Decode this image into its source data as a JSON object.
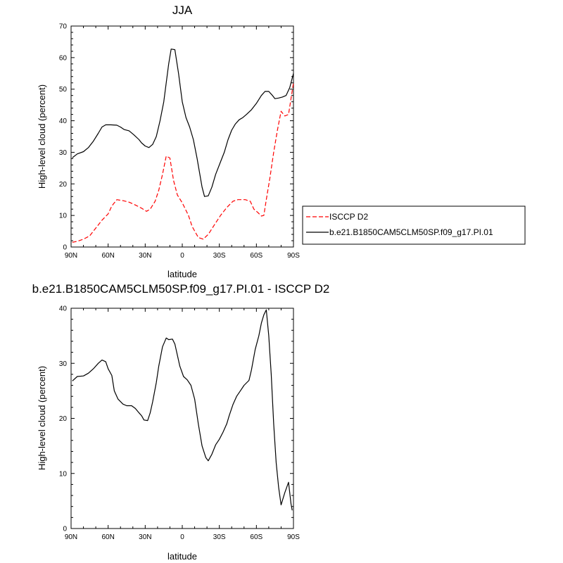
{
  "chart_data": [
    {
      "type": "line",
      "title": "JJA",
      "xlabel": "latitude",
      "ylabel": "High-level cloud (percent)",
      "xlim": [
        -90,
        90
      ],
      "ylim": [
        0,
        70
      ],
      "x_ticks": [
        {
          "v": -90,
          "label": "90N"
        },
        {
          "v": -60,
          "label": "60N"
        },
        {
          "v": -30,
          "label": "30N"
        },
        {
          "v": 0,
          "label": "0"
        },
        {
          "v": 30,
          "label": "30S"
        },
        {
          "v": 60,
          "label": "60S"
        },
        {
          "v": 90,
          "label": "90S"
        }
      ],
      "y_ticks": [
        0,
        10,
        20,
        30,
        40,
        50,
        60,
        70
      ],
      "legend_position": "right",
      "series": [
        {
          "name": "ISCCP D2",
          "color": "#ff0000",
          "dash": "dashed",
          "points": [
            [
              -89,
              1.5
            ],
            [
              -85,
              1.8
            ],
            [
              -80,
              2.5
            ],
            [
              -75,
              3.5
            ],
            [
              -70,
              6
            ],
            [
              -65,
              8.5
            ],
            [
              -60,
              10.5
            ],
            [
              -57,
              13
            ],
            [
              -53,
              15
            ],
            [
              -48,
              14.7
            ],
            [
              -43,
              14.2
            ],
            [
              -38,
              13.3
            ],
            [
              -33,
              12.3
            ],
            [
              -29,
              11.3
            ],
            [
              -26,
              12
            ],
            [
              -22,
              14.5
            ],
            [
              -19,
              18
            ],
            [
              -16,
              23
            ],
            [
              -13,
              28.8
            ],
            [
              -10,
              28.2
            ],
            [
              -7,
              21
            ],
            [
              -4,
              16.5
            ],
            [
              0,
              14
            ],
            [
              5,
              10
            ],
            [
              8,
              6.5
            ],
            [
              13,
              3
            ],
            [
              17,
              2.5
            ],
            [
              21,
              4
            ],
            [
              26,
              7
            ],
            [
              31,
              10
            ],
            [
              36,
              12.5
            ],
            [
              41,
              14.5
            ],
            [
              45,
              15
            ],
            [
              48,
              15
            ],
            [
              51,
              15
            ],
            [
              55,
              14.5
            ],
            [
              58,
              12
            ],
            [
              61,
              11
            ],
            [
              64,
              9.8
            ],
            [
              66,
              10
            ],
            [
              68,
              15
            ],
            [
              71,
              22
            ],
            [
              74,
              30
            ],
            [
              77,
              37
            ],
            [
              80,
              43
            ],
            [
              83,
              41.5
            ],
            [
              86,
              42
            ],
            [
              88,
              47
            ],
            [
              90,
              52
            ]
          ]
        },
        {
          "name": "b.e21.B1850CAM5CLM50SP.f09_g17.PI.01",
          "color": "#000000",
          "dash": "solid",
          "points": [
            [
              -89,
              28.3
            ],
            [
              -85,
              29.5
            ],
            [
              -80,
              30.2
            ],
            [
              -76,
              31.5
            ],
            [
              -72,
              33.5
            ],
            [
              -68,
              36
            ],
            [
              -65,
              38
            ],
            [
              -62,
              38.7
            ],
            [
              -58,
              38.7
            ],
            [
              -53,
              38.6
            ],
            [
              -50,
              38
            ],
            [
              -47,
              37.2
            ],
            [
              -43,
              36.8
            ],
            [
              -39,
              35.5
            ],
            [
              -35,
              34
            ],
            [
              -33,
              33
            ],
            [
              -30,
              32
            ],
            [
              -27,
              31.5
            ],
            [
              -24,
              32.5
            ],
            [
              -21,
              35
            ],
            [
              -18,
              40
            ],
            [
              -15,
              46
            ],
            [
              -13,
              52
            ],
            [
              -11,
              58
            ],
            [
              -9,
              62.7
            ],
            [
              -6,
              62.5
            ],
            [
              -3,
              55
            ],
            [
              0,
              46
            ],
            [
              3,
              41
            ],
            [
              6,
              38
            ],
            [
              9,
              34
            ],
            [
              12,
              28
            ],
            [
              14,
              23.5
            ],
            [
              16,
              19
            ],
            [
              18,
              16
            ],
            [
              21,
              16.2
            ],
            [
              24,
              19
            ],
            [
              27,
              23
            ],
            [
              31,
              27
            ],
            [
              34,
              30
            ],
            [
              37,
              34
            ],
            [
              40,
              37
            ],
            [
              43,
              39
            ],
            [
              46,
              40.3
            ],
            [
              49,
              41
            ],
            [
              52,
              42
            ],
            [
              56,
              43.5
            ],
            [
              60,
              45.5
            ],
            [
              64,
              48
            ],
            [
              67,
              49.3
            ],
            [
              70,
              49.3
            ],
            [
              73,
              48
            ],
            [
              75,
              47
            ],
            [
              78,
              47.2
            ],
            [
              81,
              47.5
            ],
            [
              84,
              48
            ],
            [
              87,
              50.5
            ],
            [
              90,
              55
            ]
          ]
        }
      ]
    },
    {
      "type": "line",
      "title": "b.e21.B1850CAM5CLM50SP.f09_g17.PI.01 - ISCCP D2",
      "xlabel": "latitude",
      "ylabel": "High-level cloud (percent)",
      "xlim": [
        -90,
        90
      ],
      "ylim": [
        0,
        40
      ],
      "x_ticks": [
        {
          "v": -90,
          "label": "90N"
        },
        {
          "v": -60,
          "label": "60N"
        },
        {
          "v": -30,
          "label": "30N"
        },
        {
          "v": 0,
          "label": "0"
        },
        {
          "v": 30,
          "label": "30S"
        },
        {
          "v": 60,
          "label": "60S"
        },
        {
          "v": 90,
          "label": "90S"
        }
      ],
      "y_ticks": [
        0,
        10,
        20,
        30,
        40
      ],
      "series": [
        {
          "color": "#000000",
          "dash": "solid",
          "points": [
            [
              -89,
              26.8
            ],
            [
              -85,
              27.6
            ],
            [
              -80,
              27.7
            ],
            [
              -76,
              28.2
            ],
            [
              -72,
              29
            ],
            [
              -68,
              30
            ],
            [
              -65,
              30.6
            ],
            [
              -62,
              30.3
            ],
            [
              -60,
              29
            ],
            [
              -57,
              27.8
            ],
            [
              -55,
              25
            ],
            [
              -52,
              23.5
            ],
            [
              -48,
              22.6
            ],
            [
              -45,
              22.3
            ],
            [
              -41,
              22.3
            ],
            [
              -38,
              21.8
            ],
            [
              -35,
              21
            ],
            [
              -33,
              20.5
            ],
            [
              -31,
              19.7
            ],
            [
              -28,
              19.6
            ],
            [
              -26,
              21
            ],
            [
              -24,
              23
            ],
            [
              -21,
              26.5
            ],
            [
              -19,
              29.5
            ],
            [
              -16,
              33
            ],
            [
              -13,
              34.6
            ],
            [
              -11,
              34.3
            ],
            [
              -8,
              34.4
            ],
            [
              -6,
              33.5
            ],
            [
              -4,
              31.5
            ],
            [
              -2,
              29.5
            ],
            [
              1,
              27.6
            ],
            [
              4,
              27
            ],
            [
              7,
              26
            ],
            [
              10,
              23.5
            ],
            [
              13,
              19
            ],
            [
              16,
              15
            ],
            [
              19,
              12.9
            ],
            [
              21,
              12.3
            ],
            [
              24,
              13.5
            ],
            [
              27,
              15.2
            ],
            [
              30,
              16.2
            ],
            [
              33,
              17.5
            ],
            [
              36,
              19
            ],
            [
              38,
              20.5
            ],
            [
              41,
              22.5
            ],
            [
              44,
              24
            ],
            [
              47,
              25
            ],
            [
              50,
              26
            ],
            [
              54,
              26.9
            ],
            [
              56,
              28.8
            ],
            [
              59,
              32.5
            ],
            [
              62,
              35
            ],
            [
              64,
              37.3
            ],
            [
              66,
              38.8
            ],
            [
              68,
              39.7
            ],
            [
              70,
              35
            ],
            [
              72,
              28
            ],
            [
              74,
              19
            ],
            [
              76,
              12
            ],
            [
              78,
              7.5
            ],
            [
              80,
              4.3
            ],
            [
              83,
              6.5
            ],
            [
              86,
              8.4
            ],
            [
              88,
              4.5
            ],
            [
              89,
              3.3
            ]
          ]
        }
      ]
    }
  ]
}
